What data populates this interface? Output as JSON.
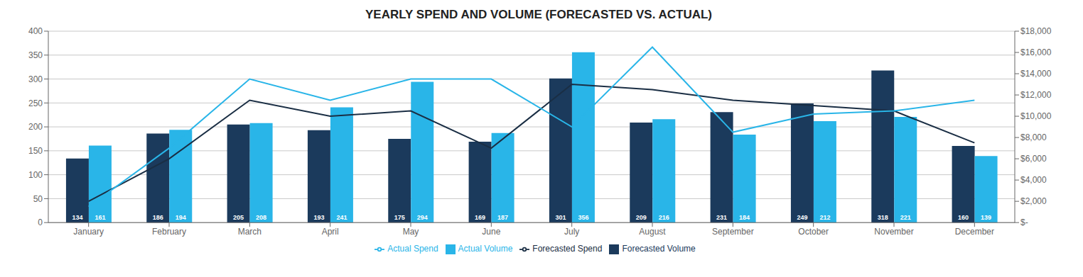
{
  "chart_data": {
    "type": "bar",
    "title": "YEARLY SPEND AND VOLUME (FORECASTED VS. ACTUAL)",
    "categories": [
      "January",
      "February",
      "March",
      "April",
      "May",
      "June",
      "July",
      "August",
      "September",
      "October",
      "November",
      "December"
    ],
    "series": [
      {
        "name": "Forecasted Volume",
        "type": "bar",
        "color": "#1b3a5c",
        "data_labels": true,
        "values": [
          134,
          186,
          205,
          193,
          175,
          169,
          301,
          209,
          231,
          249,
          318,
          160
        ]
      },
      {
        "name": "Actual Volume",
        "type": "bar",
        "color": "#29b5e8",
        "data_labels": true,
        "values": [
          161,
          194,
          208,
          241,
          294,
          187,
          356,
          216,
          184,
          212,
          221,
          139
        ]
      },
      {
        "name": "Forecasted Spend",
        "type": "line",
        "axis": "y2",
        "color": "#1a2e44",
        "values": [
          2000,
          6000,
          11500,
          10000,
          10500,
          7000,
          13000,
          12500,
          11500,
          11000,
          10500,
          7500
        ]
      },
      {
        "name": "Actual Spend",
        "type": "line",
        "axis": "y2",
        "color": "#29b5e8",
        "values": [
          1500,
          7000,
          13500,
          11500,
          13500,
          13500,
          9000,
          16500,
          8500,
          10200,
          10500,
          11500
        ]
      }
    ],
    "ylim": [
      0,
      400
    ],
    "yticks": [
      0,
      50,
      100,
      150,
      200,
      250,
      300,
      350,
      400
    ],
    "y2lim": [
      0,
      18000
    ],
    "y2ticks": [
      {
        "value": 0,
        "label": "$-"
      },
      {
        "value": 2000,
        "label": "$2,000"
      },
      {
        "value": 4000,
        "label": "$4,000"
      },
      {
        "value": 6000,
        "label": "$6,000"
      },
      {
        "value": 8000,
        "label": "$8,000"
      },
      {
        "value": 10000,
        "label": "$10,000"
      },
      {
        "value": 12000,
        "label": "$12,000"
      },
      {
        "value": 14000,
        "label": "$14,000"
      },
      {
        "value": 16000,
        "label": "$16,000"
      },
      {
        "value": 18000,
        "label": "$18,000"
      }
    ],
    "grid": true,
    "legend": "bottom"
  }
}
